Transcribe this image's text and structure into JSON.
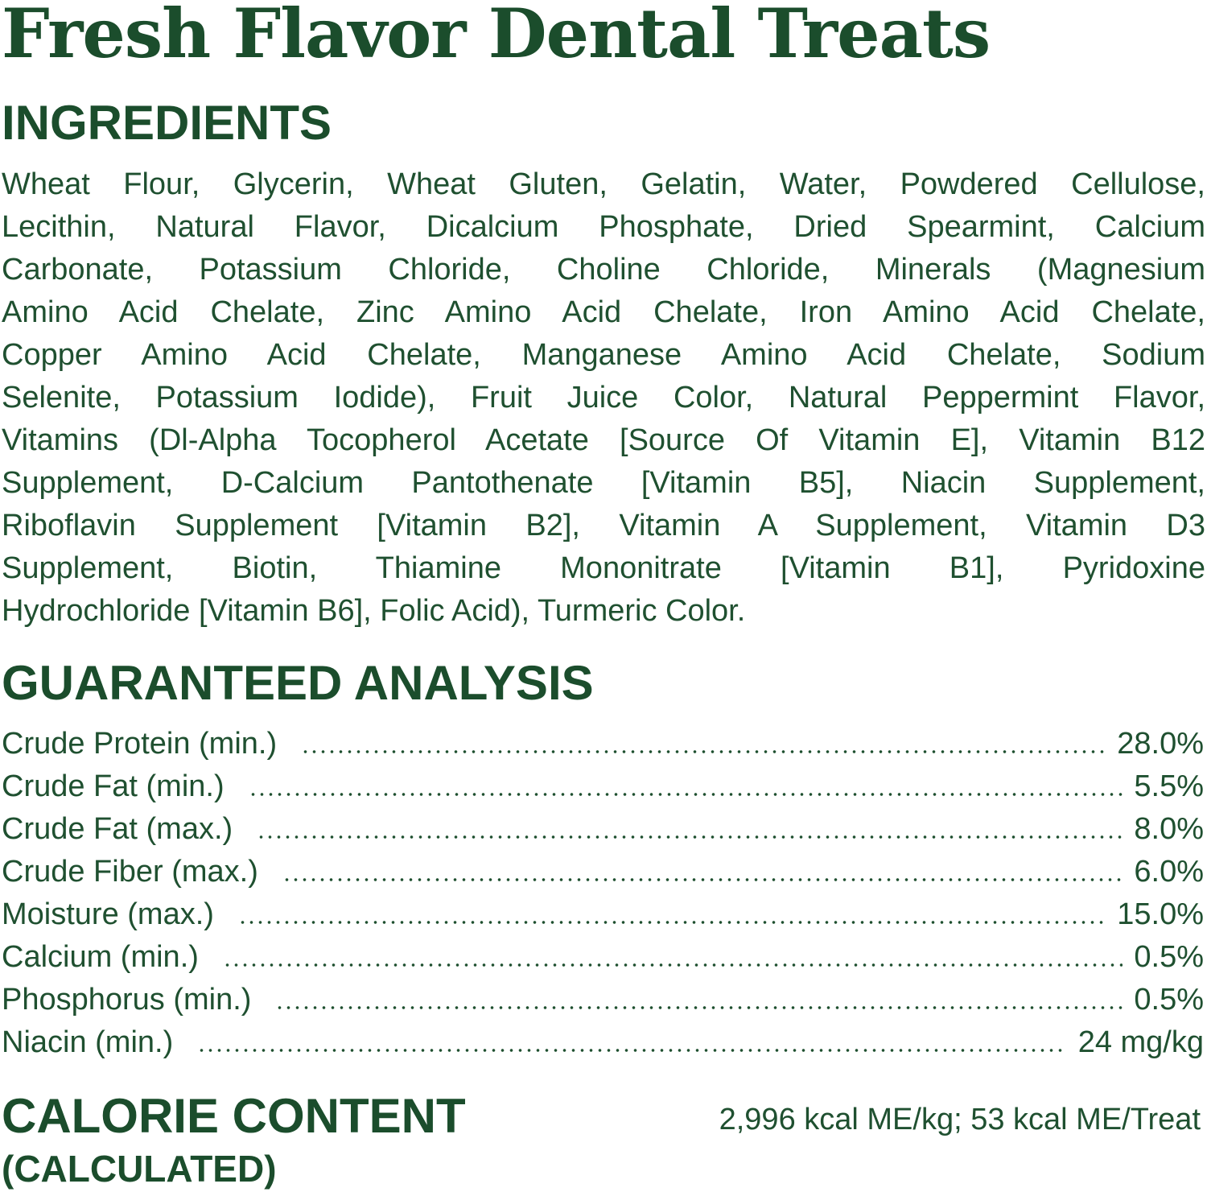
{
  "title": "Fresh Flavor Dental Treats",
  "ingredients": {
    "heading": "INGREDIENTS",
    "lines": [
      "Wheat Flour, Glycerin, Wheat Gluten, Gelatin, Water, Powdered Cellulose,",
      "Lecithin, Natural Flavor, Dicalcium Phosphate, Dried Spearmint, Calcium",
      "Carbonate, Potassium Chloride, Choline Chloride, Minerals (Magnesium",
      "Amino Acid Chelate, Zinc Amino Acid Chelate, Iron Amino Acid Chelate,",
      "Copper Amino Acid Chelate, Manganese Amino Acid Chelate, Sodium",
      "Selenite, Potassium Iodide), Fruit Juice Color, Natural Peppermint Flavor,",
      "Vitamins (Dl-Alpha Tocopherol Acetate [Source Of Vitamin E], Vitamin B12",
      "Supplement, D-Calcium Pantothenate [Vitamin B5], Niacin Supplement,",
      "Riboflavin Supplement [Vitamin B2], Vitamin A Supplement, Vitamin D3",
      "Supplement, Biotin, Thiamine Mononitrate [Vitamin B1], Pyridoxine",
      "Hydrochloride [Vitamin B6], Folic Acid), Turmeric Color."
    ]
  },
  "analysis": {
    "heading": "GUARANTEED ANALYSIS",
    "rows": [
      {
        "label": "Crude Protein (min.)",
        "value": "28.0%"
      },
      {
        "label": "Crude Fat (min.)",
        "value": "5.5%"
      },
      {
        "label": "Crude Fat (max.)",
        "value": "8.0%"
      },
      {
        "label": "Crude Fiber (max.)",
        "value": "6.0%"
      },
      {
        "label": "Moisture (max.)",
        "value": "15.0%"
      },
      {
        "label": "Calcium (min.)",
        "value": "0.5%"
      },
      {
        "label": "Phosphorus (min.)",
        "value": "0.5%"
      },
      {
        "label": "Niacin (min.)",
        "value": "24 mg/kg"
      }
    ]
  },
  "calorie": {
    "heading": "CALORIE CONTENT",
    "subheading": "(CALCULATED)",
    "value": "2,996 kcal ME/kg; 53 kcal ME/Treat"
  },
  "colors": {
    "brand_green": "#1b4d2c"
  }
}
